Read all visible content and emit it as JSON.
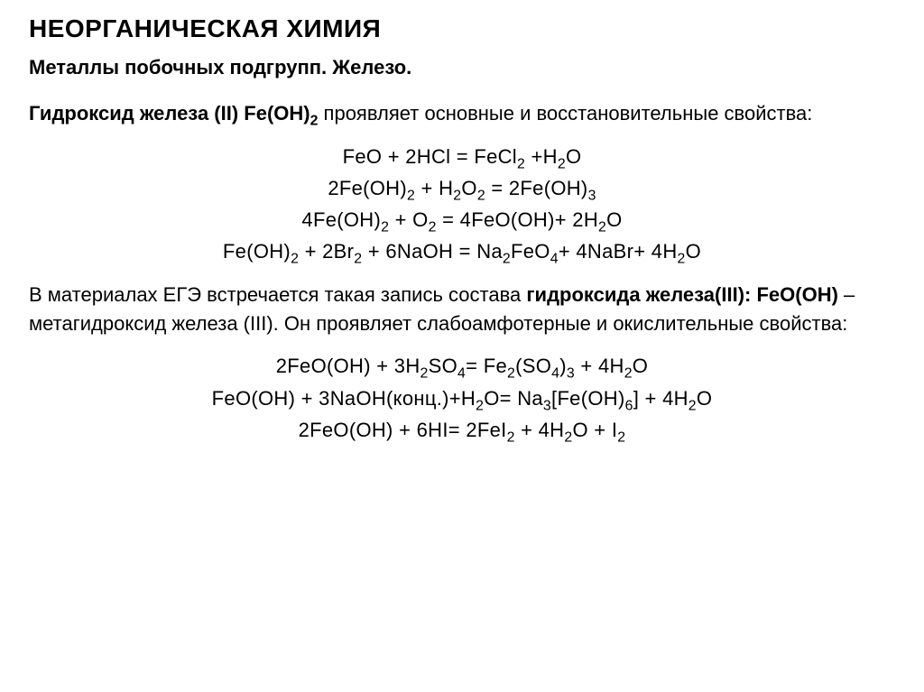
{
  "doc": {
    "main_title": "НЕОРГАНИЧЕСКАЯ ХИМИЯ",
    "subtitle": "Металлы побочных подгрупп. Железо.",
    "intro": {
      "bold_part": "Гидроксид железа (II) Fe(OH)",
      "bold_sub": "2",
      "rest": " проявляет основные и восстановительные свойства:"
    },
    "equations_block1": [
      {
        "html": "FeO + 2HCl = FeCl<sub>2</sub> +H<sub>2</sub>O"
      },
      {
        "html": "2Fe(OH)<sub>2</sub> + H<sub>2</sub>O<sub>2</sub> = 2Fe(OH)<sub>3</sub>"
      },
      {
        "html": "4Fe(OH)<sub>2</sub> + O<sub>2</sub> = 4FeO(OH)+ 2H<sub>2</sub>O"
      },
      {
        "html": "Fe(OH)<sub>2</sub> + 2Br<sub>2</sub> + 6NaOH = Na<sub>2</sub>FeO<sub>4</sub>+ 4NaBr+ 4H<sub>2</sub>O"
      }
    ],
    "mid": {
      "part1": "В материалах ЕГЭ встречается такая запись состава ",
      "bold_part": "гидроксида железа(III): FeO(OH)",
      "part2": " – метагидроксид железа (III). Он проявляет слабоамфотерные и окислительные свойства:"
    },
    "equations_block2": [
      {
        "html": "2FeO(OH) + 3H<sub>2</sub>SO<sub>4</sub>= Fe<sub>2</sub>(SO<sub>4</sub>)<sub>3</sub> + 4H<sub>2</sub>O"
      },
      {
        "html": "FeO(OH) +  3NaOH(конц.)+H<sub>2</sub>O= Na<sub>3</sub>[Fe(OH)<sub>6</sub>] + 4H<sub>2</sub>O"
      },
      {
        "html": "2FeO(OH) + 6HI= 2FeI<sub>2</sub> + 4H<sub>2</sub>O + I<sub>2</sub>"
      }
    ],
    "style": {
      "background_color": "#ffffff",
      "text_color": "#000000",
      "title_fontsize": 28,
      "subtitle_fontsize": 22,
      "body_fontsize": 22,
      "font_family": "Arial"
    }
  }
}
